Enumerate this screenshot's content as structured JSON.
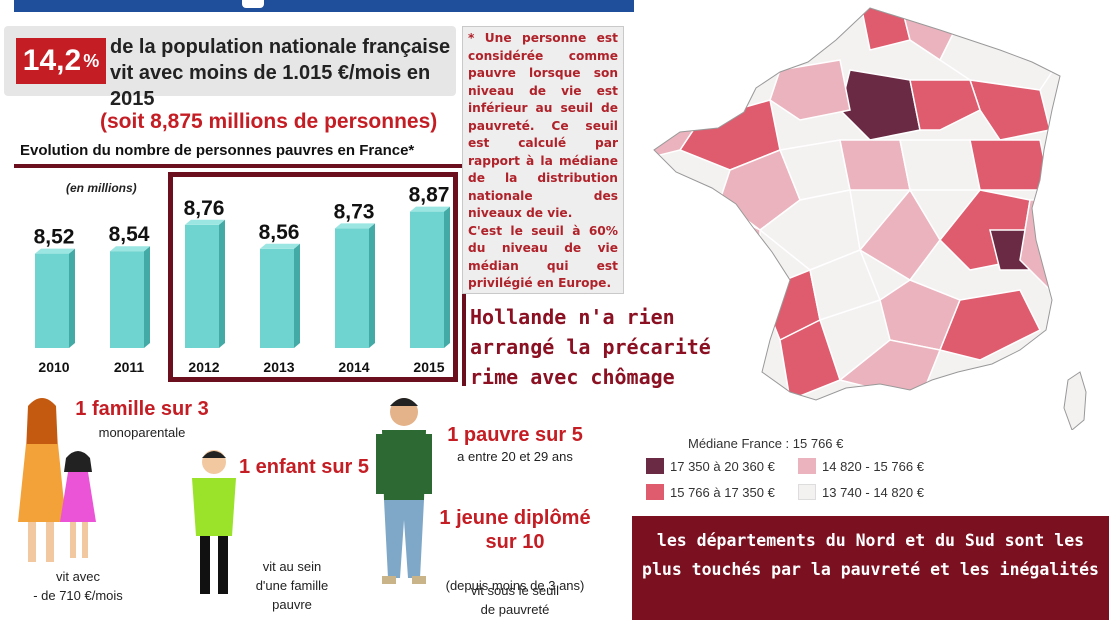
{
  "header": {
    "percent": "14,2",
    "percent_sign": "%",
    "stat_text": "de la population nationale française vit avec moins de 1.015 €/mois en 2015",
    "soit_text": "(soit 8,875 millions de personnes)"
  },
  "definition": {
    "text": "* Une personne est considérée comme pauvre lorsque son niveau de vie est inférieur au seuil de pauvreté. Ce seuil est calculé par rapport à la médiane de la distribution nationale des niveaux de vie.\nC'est le seuil à 60% du niveau de vie médian qui est privilégié en Europe."
  },
  "overlay_text": "Hollande n'a rien\narrangé la précarité\nrime avec chômage",
  "chart_data": {
    "type": "bar",
    "title": "Evolution du nombre de personnes pauvres en France*",
    "unit_label": "(en millions)",
    "categories": [
      "2010",
      "2011",
      "2012",
      "2013",
      "2014",
      "2015"
    ],
    "values": [
      8.52,
      8.54,
      8.76,
      8.56,
      8.73,
      8.87
    ],
    "value_labels": [
      "8,52",
      "8,54",
      "8,76",
      "8,56",
      "8,73",
      "8,87"
    ],
    "highlighted": [
      "2012",
      "2013",
      "2014",
      "2015"
    ],
    "bar_color": "#6fd3cf",
    "highlight_color": "#6b0f1e"
  },
  "stats": {
    "famille_big": "1 famille sur 3",
    "famille_small": "monoparentale",
    "famille_note": "vit avec\n- de 710 €/mois",
    "enfant_big": "1 enfant sur 5",
    "enfant_note": "vit au sein\nd'une famille\npauvre",
    "pauvre_big": "1 pauvre sur 5",
    "pauvre_small": "a entre 20 et 29 ans",
    "jeune_big": "1 jeune diplômé\nsur 10",
    "jeune_small": "(depuis moins de 3 ans)",
    "jeune_note": "vit sous le seuil\nde pauvreté"
  },
  "map_legend": {
    "title": "Médiane France : 15 766 €",
    "items": [
      {
        "label": "17 350 à 20 360 €",
        "color": "#6b2a44"
      },
      {
        "label": "15 766 à 17 350 €",
        "color": "#de5c6e"
      },
      {
        "label": "14 820 - 15 766 €",
        "color": "#ebb3bd"
      },
      {
        "label": "13 740 - 14 820 €",
        "color": "#f4f1f1"
      }
    ]
  },
  "footer_text": "les départements du Nord et du Sud sont les\nplus touchés par la pauvreté et les inégalités"
}
